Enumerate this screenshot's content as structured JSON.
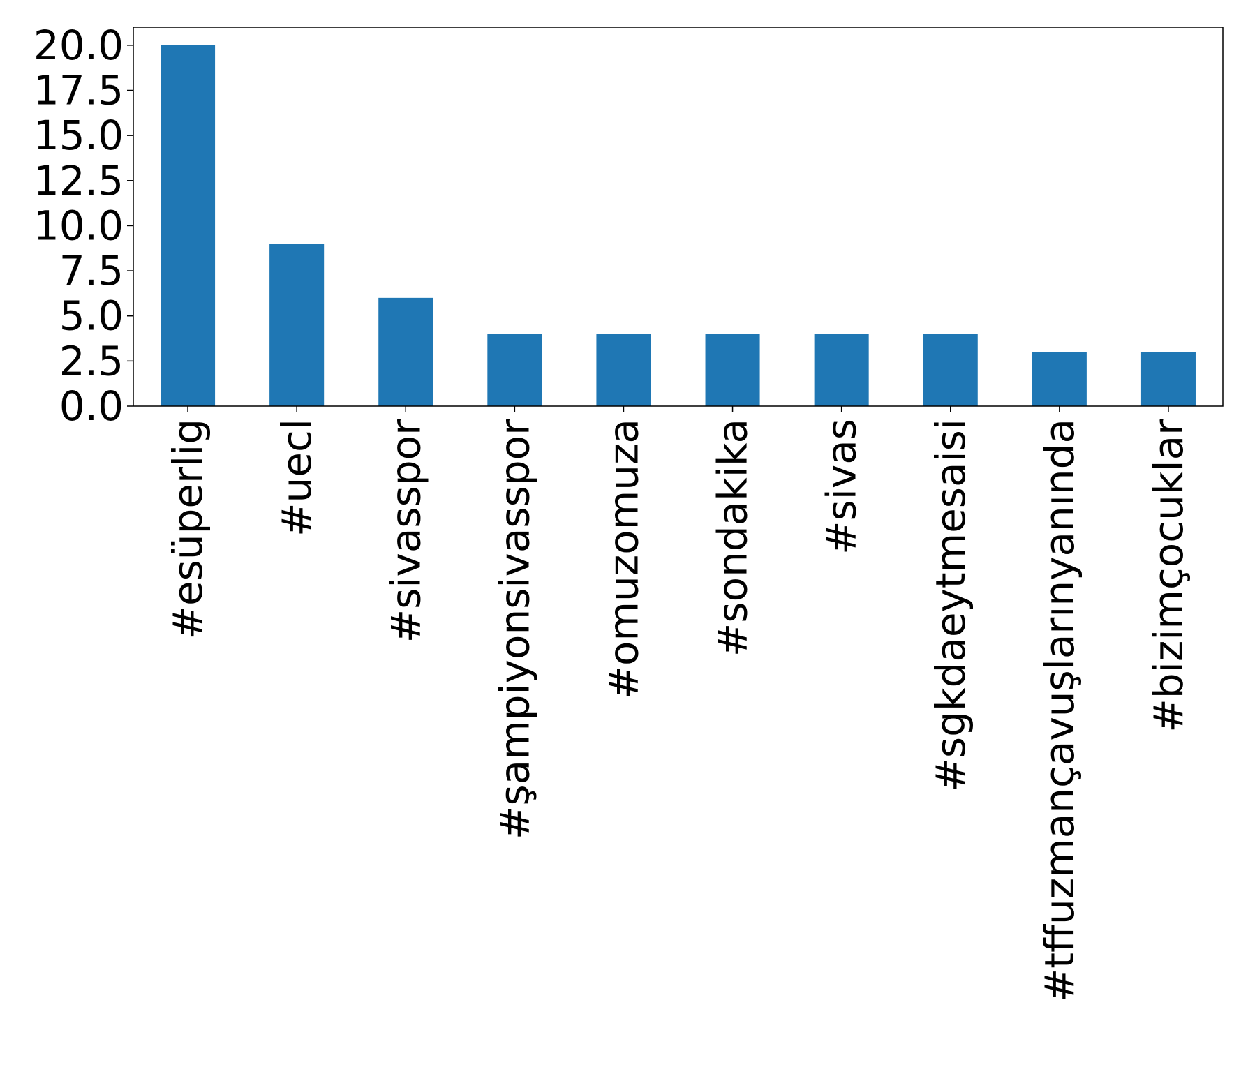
{
  "chart_data": {
    "type": "bar",
    "title": "",
    "xlabel": "",
    "ylabel": "",
    "categories": [
      "#esüperlig",
      "#uecl",
      "#sivasspor",
      "#şampiyonsivasspor",
      "#omuzomuza",
      "#sondakika",
      "#sivas",
      "#sgkdaeytmesaisi",
      "#tffuzmançavuşlarınyanında",
      "#bizimçocuklar"
    ],
    "values": [
      20,
      9,
      6,
      4,
      4,
      4,
      4,
      4,
      3,
      3
    ],
    "ylim": [
      0,
      21
    ],
    "yticks": [
      "0.0",
      "2.5",
      "5.0",
      "7.5",
      "10.0",
      "12.5",
      "15.0",
      "17.5",
      "20.0"
    ],
    "grid": false,
    "legend": "none",
    "colors": {
      "bar": "#1f77b4",
      "axis": "#000000"
    }
  }
}
